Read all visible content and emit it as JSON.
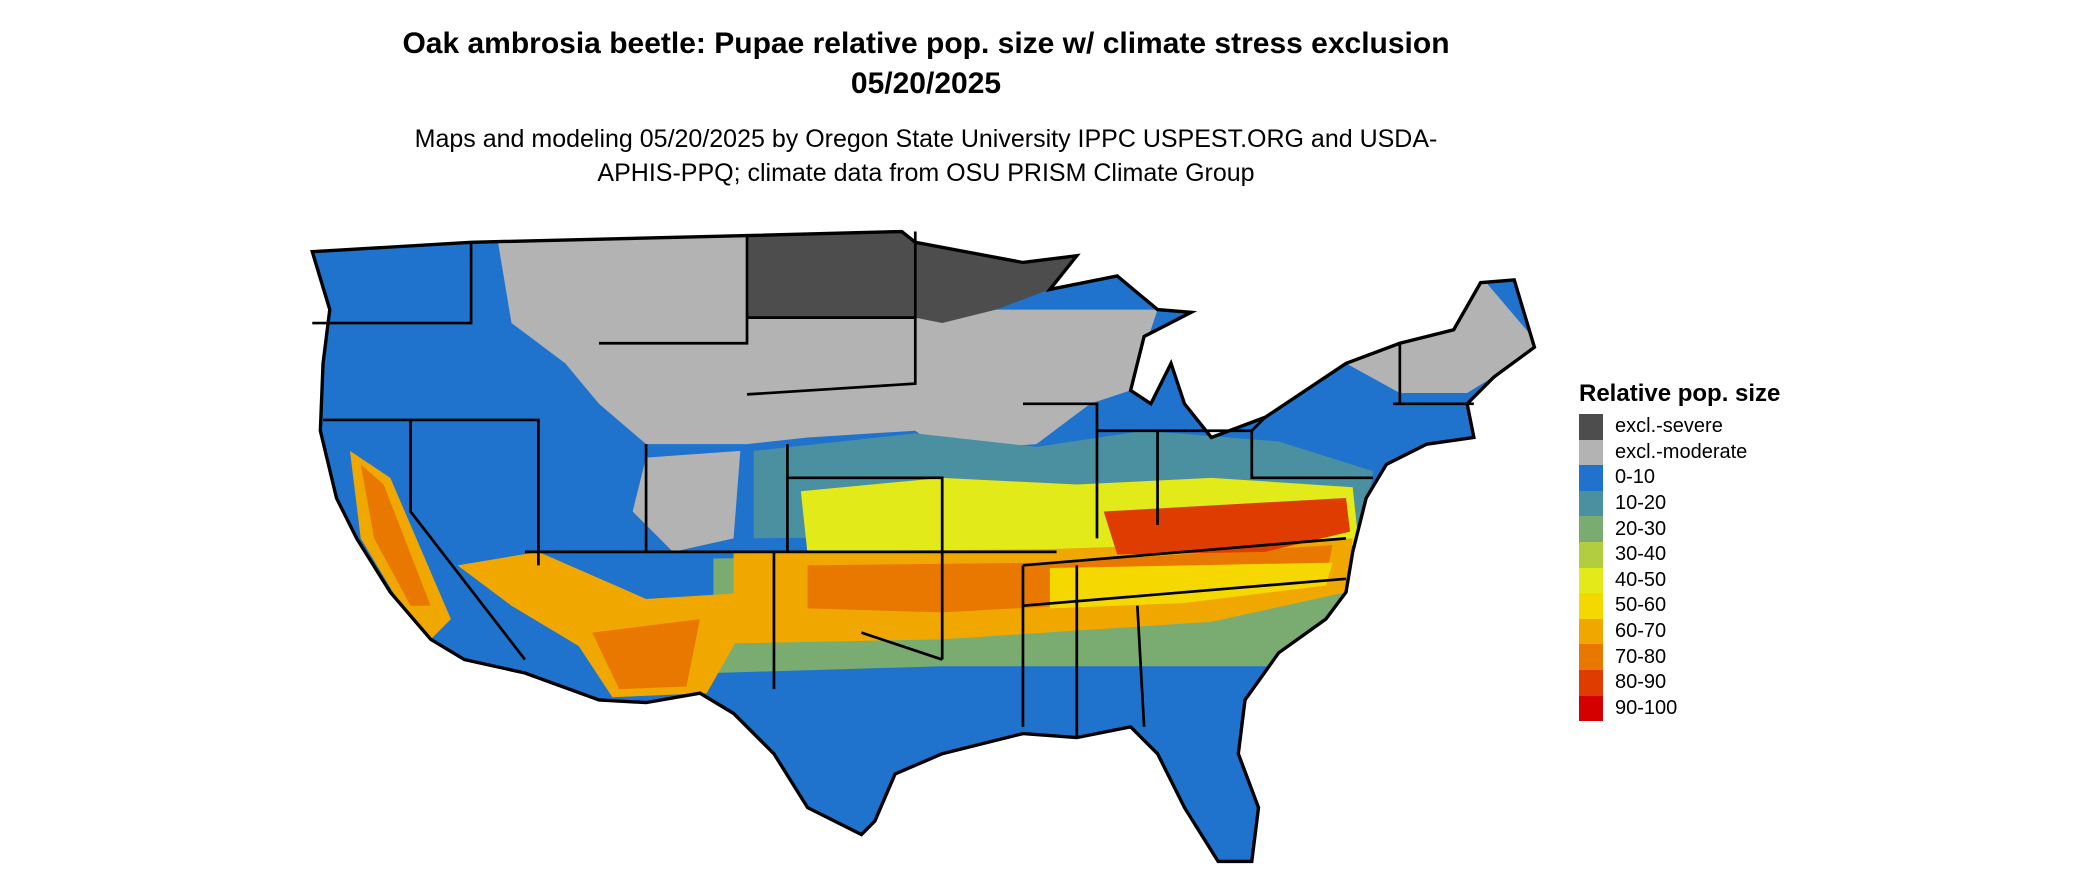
{
  "title": "Oak ambrosia beetle: Pupae relative pop. size w/ climate stress exclusion 05/20/2025",
  "subtitle": "Maps and modeling 05/20/2025 by Oregon State University IPPC USPEST.ORG and USDA-APHIS-PPQ; climate data from OSU PRISM Climate Group",
  "legend": {
    "title": "Relative pop. size",
    "items": [
      {
        "label": "excl.-severe",
        "color": "#4d4d4d"
      },
      {
        "label": "excl.-moderate",
        "color": "#b3b3b3"
      },
      {
        "label": "0-10",
        "color": "#1f73cc"
      },
      {
        "label": "10-20",
        "color": "#4a90a0"
      },
      {
        "label": "20-30",
        "color": "#7aab70"
      },
      {
        "label": "30-40",
        "color": "#b2cd40"
      },
      {
        "label": "40-50",
        "color": "#e3ea1a"
      },
      {
        "label": "50-60",
        "color": "#f5d800"
      },
      {
        "label": "60-70",
        "color": "#f0a800"
      },
      {
        "label": "70-80",
        "color": "#e87800"
      },
      {
        "label": "80-90",
        "color": "#de3c00"
      },
      {
        "label": "90-100",
        "color": "#d40000"
      }
    ]
  }
}
